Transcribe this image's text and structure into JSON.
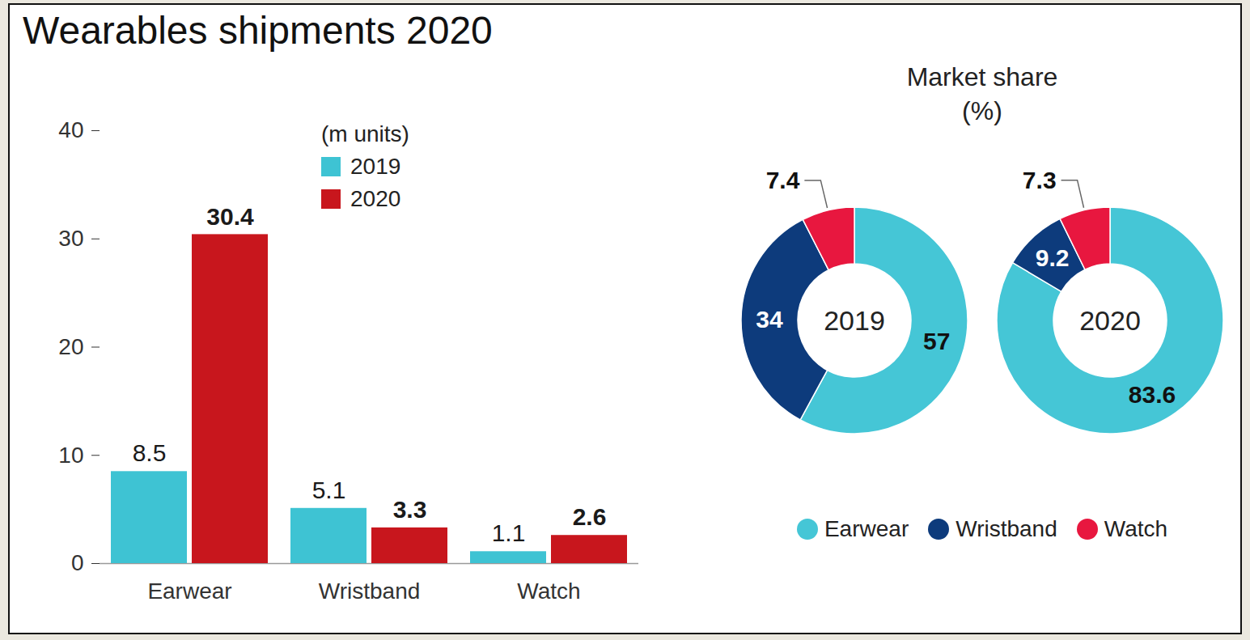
{
  "chart_data": [
    {
      "type": "bar",
      "title": "Wearables shipments 2020",
      "subtitle": "(m units)",
      "categories": [
        "Earwear",
        "Wristband",
        "Watch"
      ],
      "series": [
        {
          "name": "2019",
          "color": "#3ec3d3",
          "values": [
            8.5,
            5.1,
            1.1
          ]
        },
        {
          "name": "2020",
          "color": "#c8161d",
          "values": [
            30.4,
            3.3,
            2.6
          ]
        }
      ],
      "ylim": [
        0,
        40
      ],
      "yticks": [
        0,
        10,
        20,
        30,
        40
      ],
      "grid": false,
      "legend": "top",
      "data_labels": true
    },
    {
      "type": "pie",
      "title": "Market share (%)",
      "annotations": [
        "2019"
      ],
      "categories": [
        "Earwear",
        "Wristband",
        "Watch"
      ],
      "values": [
        57,
        34,
        7.4
      ],
      "colors": [
        "#45c6d6",
        "#0d3b7c",
        "#e8173f"
      ],
      "data_labels": true,
      "legend": "bottom"
    },
    {
      "type": "pie",
      "annotations": [
        "2020"
      ],
      "categories": [
        "Earwear",
        "Wristband",
        "Watch"
      ],
      "values": [
        83.6,
        9.2,
        7.3
      ],
      "colors": [
        "#45c6d6",
        "#0d3b7c",
        "#e8173f"
      ],
      "data_labels": true
    }
  ]
}
